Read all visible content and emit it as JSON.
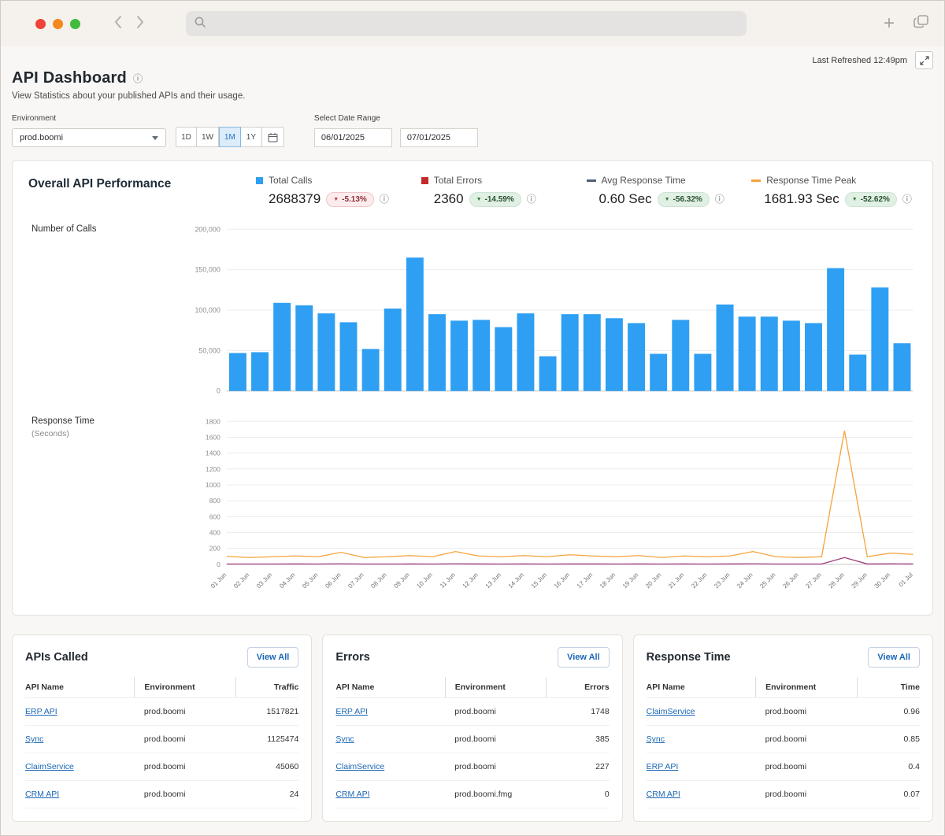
{
  "header": {
    "title": "API Dashboard",
    "subtitle": "View Statistics about your published APIs and their usage.",
    "last_refreshed": "Last Refreshed 12:49pm"
  },
  "filters": {
    "environment_label": "Environment",
    "environment_value": "prod.boomi",
    "range_buttons": [
      "1D",
      "1W",
      "1M",
      "1Y"
    ],
    "selected_range": "1M",
    "date_range_label": "Select Date Range",
    "date_from": "06/01/2025",
    "date_to": "07/01/2025"
  },
  "overall": {
    "title": "Overall API Performance",
    "calls_axis_label": "Number of Calls",
    "response_axis_label": "Response Time",
    "response_axis_sublabel": "(Seconds)",
    "metrics": [
      {
        "label": "Total Calls",
        "value": "2688379",
        "delta": "-5.13%",
        "style": "bad",
        "marker": "square",
        "marker_color": "#2e9ff2"
      },
      {
        "label": "Total Errors",
        "value": "2360",
        "delta": "-14.59%",
        "style": "good",
        "marker": "square",
        "marker_color": "#c22a2a"
      },
      {
        "label": "Avg Response Time",
        "value": "0.60 Sec",
        "delta": "-56.32%",
        "style": "good",
        "marker": "dash",
        "marker_color": "#4f5d75"
      },
      {
        "label": "Response Time Peak",
        "value": "1681.93 Sec",
        "delta": "-52.62%",
        "style": "good",
        "marker": "dash",
        "marker_color": "#f5a33c"
      }
    ]
  },
  "chart_data": [
    {
      "type": "bar",
      "title": "Number of Calls",
      "ylabel": "Number of Calls",
      "ylim": [
        0,
        200000
      ],
      "yticks": [
        0,
        50000,
        100000,
        150000,
        200000
      ],
      "ytick_labels": [
        "0",
        "50,000",
        "100,000",
        "150,000",
        "200,000"
      ],
      "bar_color": "#2e9ff2",
      "categories": [
        "01 Jun",
        "02 Jun",
        "03 Jun",
        "04 Jun",
        "05 Jun",
        "06 Jun",
        "07 Jun",
        "08 Jun",
        "09 Jun",
        "10 Jun",
        "11 Jun",
        "12 Jun",
        "13 Jun",
        "14 Jun",
        "15 Jun",
        "16 Jun",
        "17 Jun",
        "18 Jun",
        "19 Jun",
        "20 Jun",
        "21 Jun",
        "22 Jun",
        "23 Jun",
        "24 Jun",
        "25 Jun",
        "26 Jun",
        "27 Jun",
        "28 Jun",
        "29 Jun",
        "30 Jun",
        "01 Jul"
      ],
      "values": [
        47000,
        48000,
        109000,
        106000,
        96000,
        85000,
        52000,
        102000,
        165000,
        95000,
        87000,
        88000,
        79000,
        96000,
        43000,
        95000,
        95000,
        90000,
        84000,
        46000,
        88000,
        46000,
        107000,
        92000,
        92000,
        87000,
        84000,
        152000,
        45000,
        128000,
        59000
      ]
    },
    {
      "type": "line",
      "title": "Response Time (Seconds)",
      "ylabel": "Response Time (Seconds)",
      "ylim": [
        0,
        1800
      ],
      "yticks": [
        0,
        200,
        400,
        600,
        800,
        1000,
        1200,
        1400,
        1600,
        1800
      ],
      "x": [
        "01 Jun",
        "02 Jun",
        "03 Jun",
        "04 Jun",
        "05 Jun",
        "06 Jun",
        "07 Jun",
        "08 Jun",
        "09 Jun",
        "10 Jun",
        "11 Jun",
        "12 Jun",
        "13 Jun",
        "14 Jun",
        "15 Jun",
        "16 Jun",
        "17 Jun",
        "18 Jun",
        "19 Jun",
        "20 Jun",
        "21 Jun",
        "22 Jun",
        "23 Jun",
        "24 Jun",
        "25 Jun",
        "26 Jun",
        "27 Jun",
        "28 Jun",
        "29 Jun",
        "30 Jun",
        "01 Jul"
      ],
      "series": [
        {
          "name": "Avg Response Time",
          "color": "#9c3d7c",
          "values": [
            3,
            3,
            3,
            4,
            3,
            6,
            3,
            3,
            4,
            3,
            6,
            4,
            3,
            4,
            3,
            4,
            4,
            3,
            4,
            3,
            4,
            3,
            4,
            6,
            3,
            3,
            3,
            85,
            4,
            5,
            4
          ]
        },
        {
          "name": "Response Time Peak",
          "color": "#f5a33c",
          "values": [
            100,
            85,
            95,
            105,
            95,
            150,
            85,
            95,
            110,
            95,
            160,
            105,
            95,
            110,
            95,
            120,
            105,
            95,
            110,
            85,
            105,
            95,
            105,
            160,
            95,
            85,
            95,
            1682,
            95,
            140,
            125
          ]
        }
      ]
    }
  ],
  "tables": [
    {
      "title": "APIs Called",
      "view_all": "View All",
      "columns": [
        "API Name",
        "Environment",
        "Traffic"
      ],
      "rows": [
        [
          "ERP API",
          "prod.boomi",
          "1517821"
        ],
        [
          "Sync",
          "prod.boomi",
          "1125474"
        ],
        [
          "ClaimService",
          "prod.boomi",
          "45060"
        ],
        [
          "CRM API",
          "prod.boomi",
          "24"
        ]
      ]
    },
    {
      "title": "Errors",
      "view_all": "View All",
      "columns": [
        "API Name",
        "Environment",
        "Errors"
      ],
      "rows": [
        [
          "ERP API",
          "prod.boomi",
          "1748"
        ],
        [
          "Sync",
          "prod.boomi",
          "385"
        ],
        [
          "ClaimService",
          "prod.boomi",
          "227"
        ],
        [
          "CRM API",
          "prod.boomi.fmg",
          "0"
        ]
      ]
    },
    {
      "title": "Response Time",
      "view_all": "View All",
      "columns": [
        "API Name",
        "Environment",
        "Time"
      ],
      "rows": [
        [
          "ClaimService",
          "prod.boomi",
          "0.96"
        ],
        [
          "Sync",
          "prod.boomi",
          "0.85"
        ],
        [
          "ERP API",
          "prod.boomi",
          "0.4"
        ],
        [
          "CRM API",
          "prod.boomi",
          "0.07"
        ]
      ]
    }
  ]
}
